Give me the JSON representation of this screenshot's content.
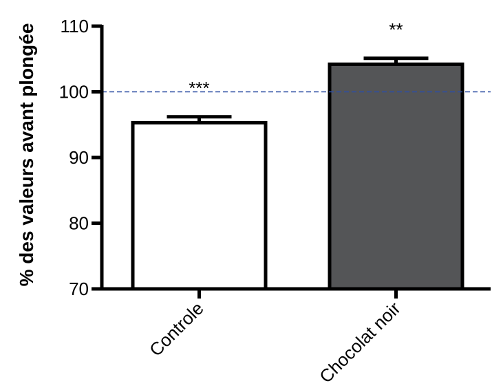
{
  "chart_data": {
    "type": "bar",
    "title": "",
    "xlabel": "",
    "ylabel": "% des valeurs avant plongée",
    "ylim": [
      70,
      110
    ],
    "yticks": [
      70,
      80,
      90,
      100,
      110
    ],
    "categories": [
      "Controle",
      "Chocolat noir"
    ],
    "values": [
      95.3,
      104.2
    ],
    "errors": [
      0.9,
      0.9
    ],
    "significance": [
      "***",
      "**"
    ],
    "bar_colors": [
      "#ffffff",
      "#545557"
    ],
    "reference_line": {
      "value": 100,
      "color": "#2e4fa3",
      "style": "dashed"
    },
    "grid": false,
    "legend": "none"
  }
}
